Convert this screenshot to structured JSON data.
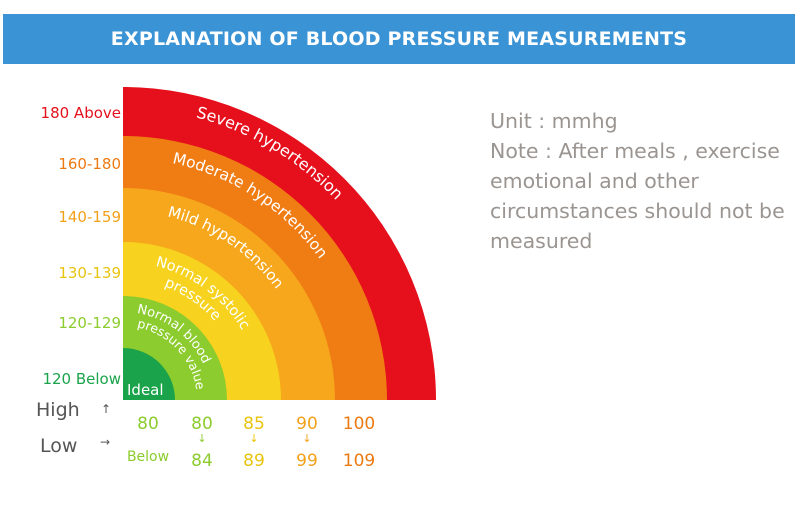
{
  "header": {
    "title": "EXPLANATION OF BLOOD PRESSURE MEASUREMENTS"
  },
  "note": {
    "unit": "Unit : mmhg",
    "lines": [
      "Note : After meals , exercise",
      "emotional and other",
      "circumstances should not be",
      "measured"
    ]
  },
  "chart_data": {
    "type": "quarter-ring",
    "title": "EXPLANATION OF BLOOD PRESSURE MEASUREMENTS",
    "unit": "mmhg",
    "systolic_axis_label": "High",
    "diastolic_axis_label": "Low",
    "bands": [
      {
        "name": "Ideal",
        "category_lines": [
          "Ideal"
        ],
        "systolic": "120 Below",
        "diastolic_high": "80",
        "diastolic_low": "Below",
        "color": "#1aa34a",
        "text_color": "#ffffff"
      },
      {
        "name": "Normal blood pressure value",
        "category_lines": [
          "Normal blood",
          "pressure value"
        ],
        "systolic": "120-129",
        "diastolic_high": "80",
        "diastolic_low": "84",
        "color": "#8ccc2e",
        "text_color": "#ffffff"
      },
      {
        "name": "Normal systolic pressure",
        "category_lines": [
          "Normal systolic",
          "pressure"
        ],
        "systolic": "130-139",
        "diastolic_high": "85",
        "diastolic_low": "89",
        "color": "#f7d21e",
        "text_color": "#ffffff"
      },
      {
        "name": "Mild hypertension",
        "category_lines": [
          "Mild hypertension"
        ],
        "systolic": "140-159",
        "diastolic_high": "90",
        "diastolic_low": "99",
        "color": "#f7a71c",
        "text_color": "#ffffff"
      },
      {
        "name": "Moderate hypertension",
        "category_lines": [
          "Moderate hypertension"
        ],
        "systolic": "160-180",
        "diastolic_high": "100",
        "diastolic_low": "109",
        "color": "#f07c14",
        "text_color": "#ffffff"
      },
      {
        "name": "Severe hypertension",
        "category_lines": [
          "Severe hypertension"
        ],
        "systolic": "180 Above",
        "diastolic_high": "",
        "diastolic_low": "",
        "color": "#e5101c",
        "text_color": "#ffffff"
      }
    ],
    "systolic_label_colors": [
      "#1aa34a",
      "#8ccc2e",
      "#e9c40f",
      "#f2a11b",
      "#ec7a13",
      "#e5101c"
    ],
    "diastolic_label_colors": [
      "#8ccc2e",
      "#8ccc2e",
      "#e9c40f",
      "#f2a11b",
      "#ec7a13",
      "#e5101c"
    ],
    "axis_label_color": "#555555"
  }
}
